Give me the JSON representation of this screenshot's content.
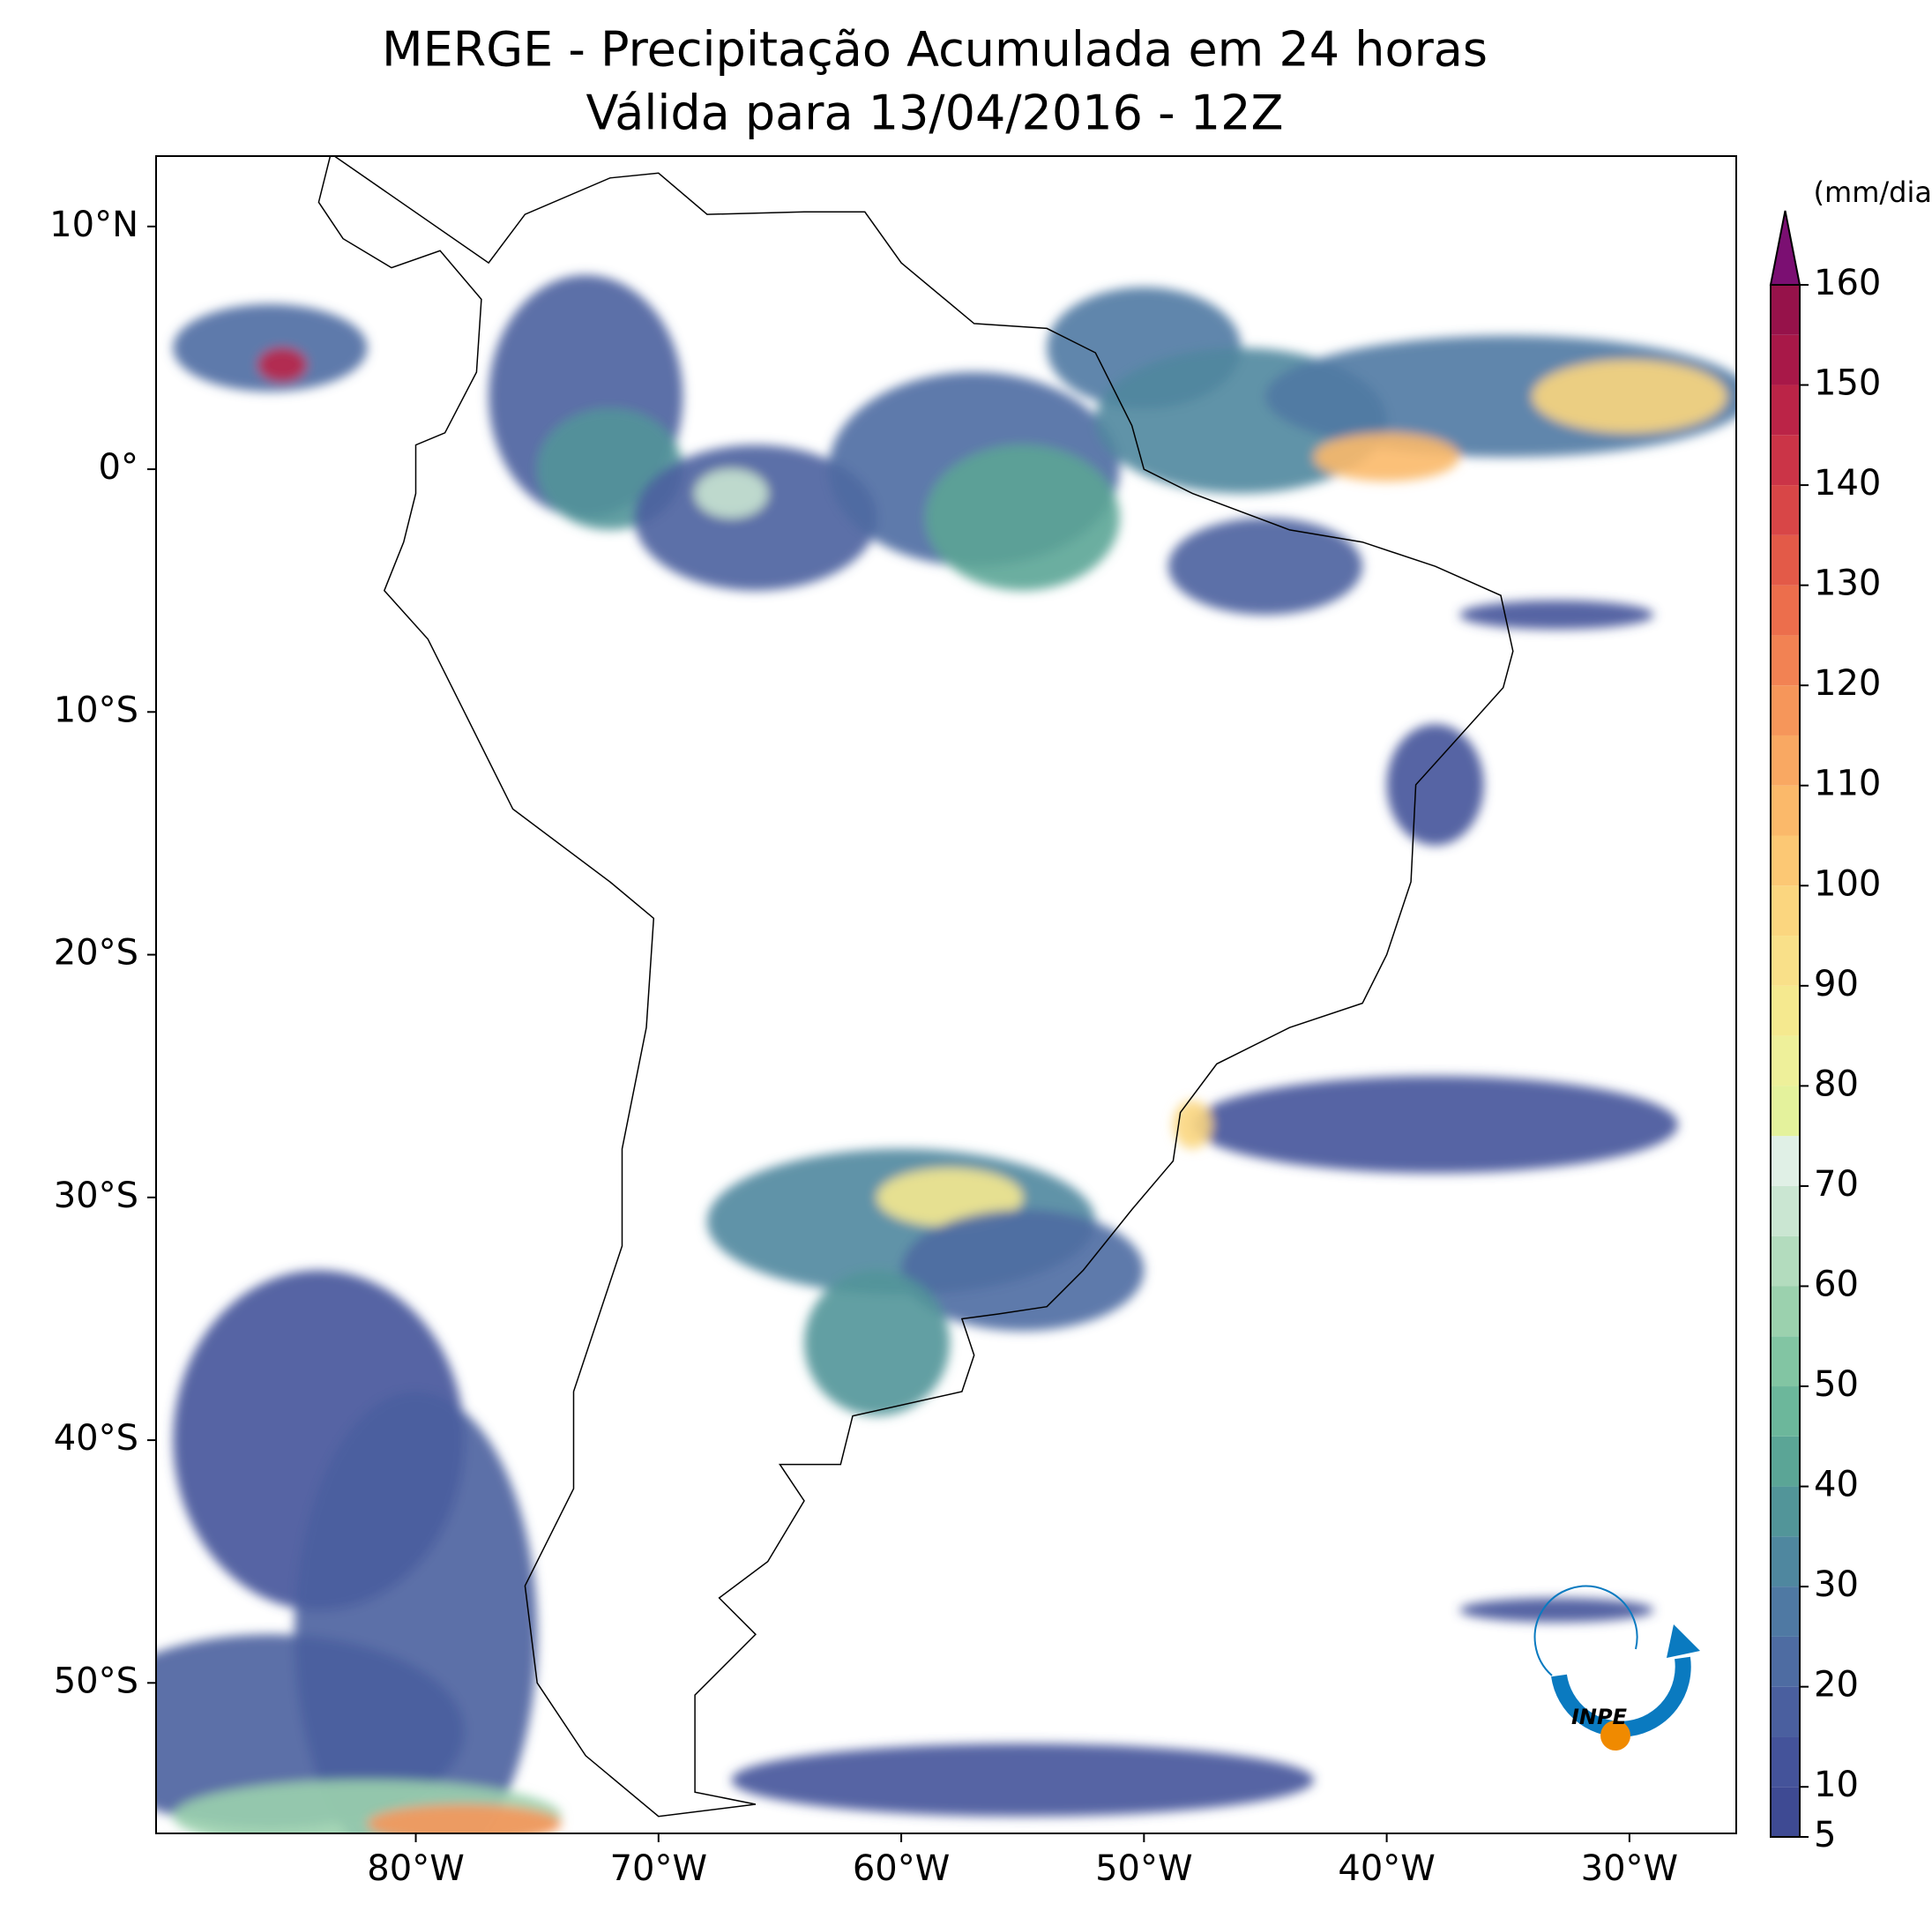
{
  "chart_data": {
    "type": "map",
    "title": "MERGE - Precipitação Acumulada em 24 horas",
    "subtitle": "Válida para 13/04/2016 - 12Z",
    "xlim": [
      -90.7,
      -25.6
    ],
    "ylim": [
      -56.2,
      12.9
    ],
    "xticks": [
      {
        "value": -80,
        "label": "80°W"
      },
      {
        "value": -70,
        "label": "70°W"
      },
      {
        "value": -60,
        "label": "60°W"
      },
      {
        "value": -50,
        "label": "50°W"
      },
      {
        "value": -40,
        "label": "40°W"
      },
      {
        "value": -30,
        "label": "30°W"
      }
    ],
    "yticks": [
      {
        "value": 10,
        "label": "10°N"
      },
      {
        "value": 0,
        "label": "0°"
      },
      {
        "value": -10,
        "label": "10°S"
      },
      {
        "value": -20,
        "label": "20°S"
      },
      {
        "value": -30,
        "label": "30°S"
      },
      {
        "value": -40,
        "label": "40°S"
      },
      {
        "value": -50,
        "label": "50°S"
      }
    ],
    "colorbar": {
      "label": "(mm/dia)",
      "lim": [
        5,
        160
      ],
      "ticks": [
        5,
        10,
        20,
        30,
        40,
        50,
        60,
        70,
        80,
        90,
        100,
        110,
        120,
        130,
        140,
        150,
        160
      ],
      "colors": [
        "#3e4a93",
        "#44539a",
        "#4a5f9f",
        "#4e6ca2",
        "#4f79a3",
        "#4f879f",
        "#529599",
        "#5ba596",
        "#6cb79b",
        "#82c5a3",
        "#9bd1ae",
        "#b3dcbe",
        "#cae6d2",
        "#e0f0e6",
        "#e4f29c",
        "#eef09a",
        "#f5e98f",
        "#f9e089",
        "#fbd67f",
        "#fcc874",
        "#fbb96a",
        "#f9a862",
        "#f6965a",
        "#f28253",
        "#ec6e4c",
        "#e35a48",
        "#d84647",
        "#cb3447",
        "#bb2447",
        "#a81848",
        "#96124a"
      ],
      "extend_color": "#7b0f72"
    },
    "logo": "INPE"
  }
}
